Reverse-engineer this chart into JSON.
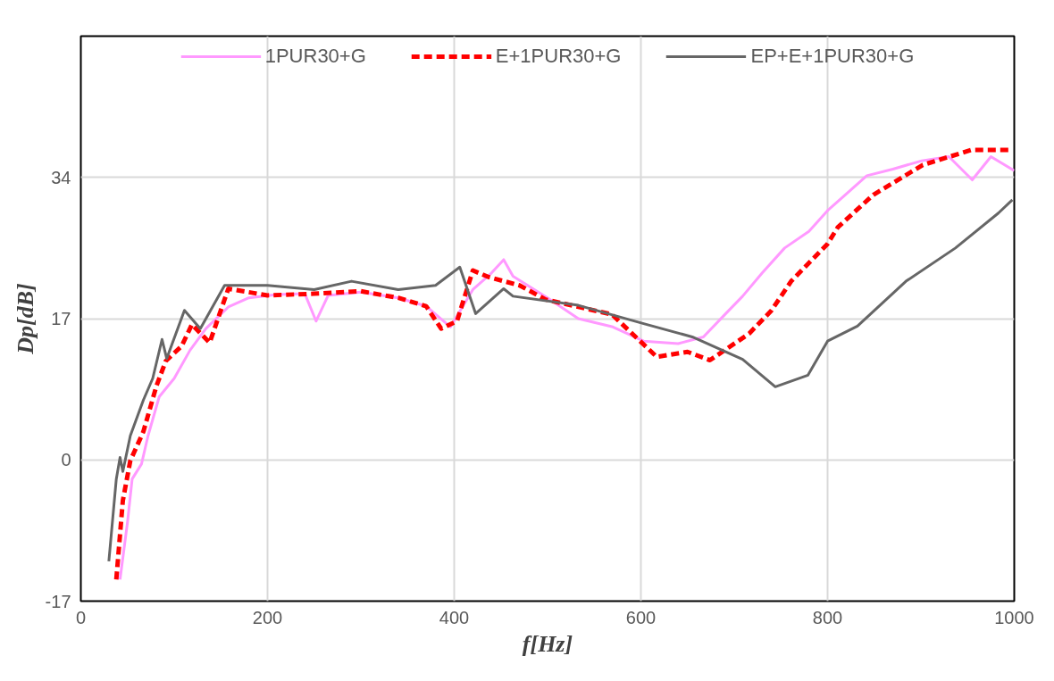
{
  "chart_data": {
    "type": "line",
    "xlabel": "f[Hz]",
    "ylabel": "Dp[dB]",
    "xlim": [
      0,
      1000
    ],
    "xticks": [
      0,
      200,
      400,
      600,
      800,
      1000
    ],
    "ylim": [
      -17,
      51
    ],
    "yticks": [
      -17,
      0,
      17,
      34
    ],
    "grid": true,
    "legend": "top",
    "marker": "none",
    "series": [
      {
        "name": "1PUR30+G",
        "color": "#ff99ff",
        "line_style": "solid",
        "x": [
          42,
          50,
          55,
          65,
          72,
          84,
          100,
          117,
          134,
          158,
          180,
          210,
          240,
          252,
          265,
          300,
          340,
          370,
          396,
          420,
          440,
          453,
          463,
          500,
          533,
          570,
          603,
          640,
          667,
          690,
          709,
          730,
          754,
          780,
          800,
          820,
          842,
          870,
          901,
          930,
          955,
          975,
          1000
        ],
        "values": [
          -14.4,
          -7.5,
          -2.3,
          -0.5,
          2.9,
          7.6,
          9.8,
          13.2,
          15.8,
          18.4,
          19.5,
          19.9,
          20,
          16.7,
          19.8,
          20.2,
          19.5,
          18.5,
          16,
          20.5,
          22.5,
          24.1,
          22.1,
          19.5,
          17,
          16,
          14.3,
          14,
          14.8,
          17.5,
          19.7,
          22.5,
          25.5,
          27.5,
          30,
          32,
          34.2,
          35,
          36,
          36.5,
          33.7,
          36.5,
          34.8
        ]
      },
      {
        "name": "E+1PUR30+G",
        "color": "#ff0000",
        "line_style": "dashed",
        "x": [
          38,
          45,
          53,
          67,
          81,
          91,
          108,
          119,
          138,
          158,
          200,
          250,
          300,
          340,
          370,
          386,
          403,
          420,
          437,
          470,
          498,
          569,
          617,
          650,
          674,
          716,
          740,
          761,
          800,
          811,
          849,
          902,
          954,
          998
        ],
        "values": [
          -14.4,
          -4.9,
          -0.1,
          3.4,
          8.9,
          11.9,
          13.7,
          16.3,
          14.1,
          20.6,
          19.8,
          20,
          20.3,
          19.5,
          18.5,
          15.8,
          16.7,
          22.8,
          22,
          21,
          19.3,
          17.5,
          12.4,
          13,
          12,
          15.2,
          18,
          21.5,
          26,
          28,
          31.9,
          35.5,
          37.3,
          37.3
        ]
      },
      {
        "name": "EP+E+1PUR30+G",
        "color": "#666666",
        "line_style": "solid",
        "x": [
          30,
          38,
          42,
          45,
          53,
          67,
          77,
          87,
          92,
          111,
          128,
          154,
          200,
          250,
          290,
          340,
          380,
          406,
          423,
          453,
          463,
          533,
          603,
          655,
          709,
          744,
          779,
          800,
          832,
          884,
          937,
          983,
          998
        ],
        "values": [
          -12.2,
          -2.3,
          0.3,
          -1.4,
          2.9,
          7.2,
          9.8,
          14.5,
          12.2,
          18,
          15.8,
          21,
          21,
          20.5,
          21.5,
          20.5,
          21,
          23.2,
          17.6,
          20.6,
          19.7,
          18.6,
          16.4,
          14.8,
          12.1,
          8.8,
          10.2,
          14.3,
          16.1,
          21.5,
          25.5,
          29.7,
          31.3
        ]
      }
    ]
  }
}
